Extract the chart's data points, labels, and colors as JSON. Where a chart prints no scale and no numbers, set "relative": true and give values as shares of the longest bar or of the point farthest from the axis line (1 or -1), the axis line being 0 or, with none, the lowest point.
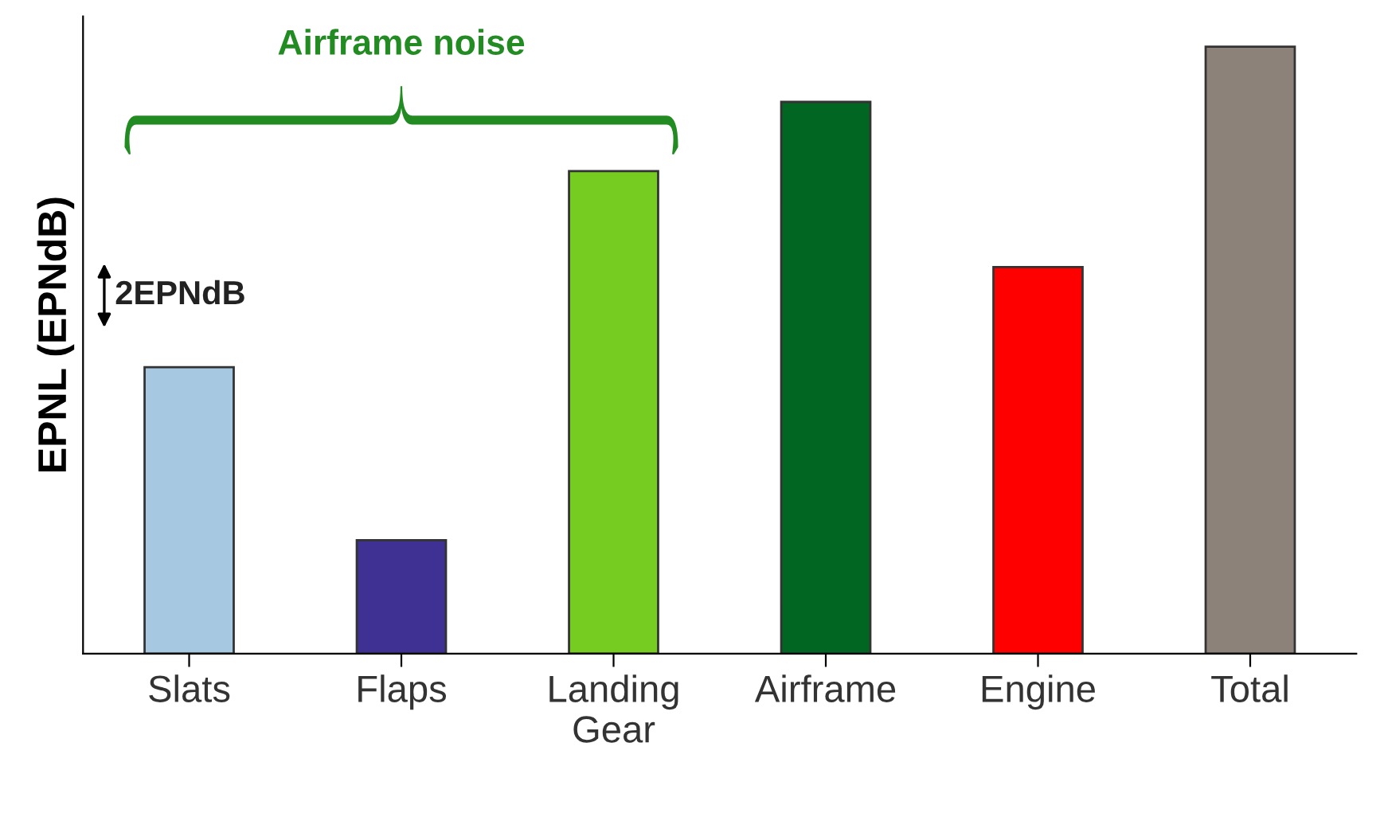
{
  "chart_data": {
    "type": "bar",
    "ylabel": "EPNL (EPNdB)",
    "relative": true,
    "categories": [
      "Slats",
      "Flaps",
      "Landing\nGear",
      "Airframe",
      "Engine",
      "Total"
    ],
    "values": [
      0.472,
      0.187,
      0.795,
      0.909,
      0.637,
      1
    ],
    "colors": [
      "#a6c8e0",
      "#3f3194",
      "#77cc22",
      "#006622",
      "#ff0000",
      "#8c8279"
    ],
    "annotations": [
      "Airframe noise",
      "2EPNdB"
    ]
  }
}
